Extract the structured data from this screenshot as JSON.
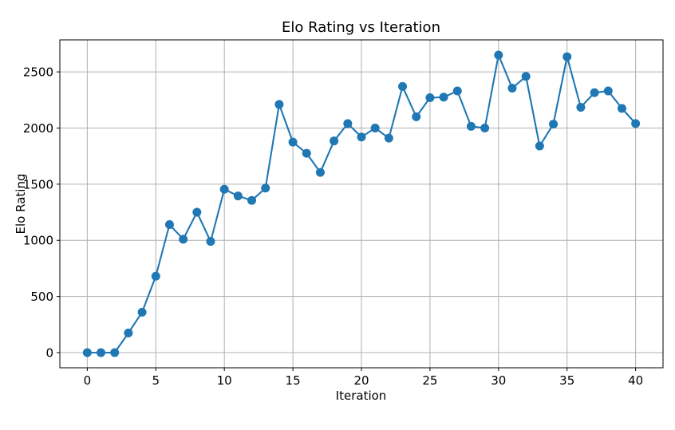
{
  "figure": {
    "title": "Elo Rating vs Iteration",
    "xlabel": "Iteration",
    "ylabel": "Elo Rating"
  },
  "chart_data": {
    "type": "line",
    "title": "Elo Rating vs Iteration",
    "xlabel": "Iteration",
    "ylabel": "Elo Rating",
    "x": [
      0,
      1,
      2,
      3,
      4,
      5,
      6,
      7,
      8,
      9,
      10,
      11,
      12,
      13,
      14,
      15,
      16,
      17,
      18,
      19,
      20,
      21,
      22,
      23,
      24,
      25,
      26,
      27,
      28,
      29,
      30,
      31,
      32,
      33,
      34,
      35,
      36,
      37,
      38,
      39,
      40
    ],
    "series": [
      {
        "name": "Elo Rating",
        "values": [
          0,
          0,
          0,
          175,
          360,
          680,
          1140,
          1010,
          1250,
          990,
          1455,
          1395,
          1355,
          1465,
          2210,
          1875,
          1775,
          1605,
          1885,
          2040,
          1920,
          2000,
          1910,
          2370,
          2100,
          2270,
          2275,
          2330,
          2015,
          2000,
          2650,
          2355,
          2460,
          1840,
          2035,
          2635,
          2185,
          2315,
          2330,
          2175,
          2040
        ]
      }
    ],
    "xlim": [
      -2,
      42
    ],
    "ylim": [
      -135,
      2785
    ],
    "xticks": [
      0,
      5,
      10,
      15,
      20,
      25,
      30,
      35,
      40
    ],
    "yticks": [
      0,
      500,
      1000,
      1500,
      2000,
      2500
    ],
    "grid": true,
    "legend": "none",
    "line_color": "#1f77b4",
    "marker": "o",
    "grid_color": "#b0b0b0",
    "frame_color": "#000000",
    "background_color": "#ffffff"
  }
}
